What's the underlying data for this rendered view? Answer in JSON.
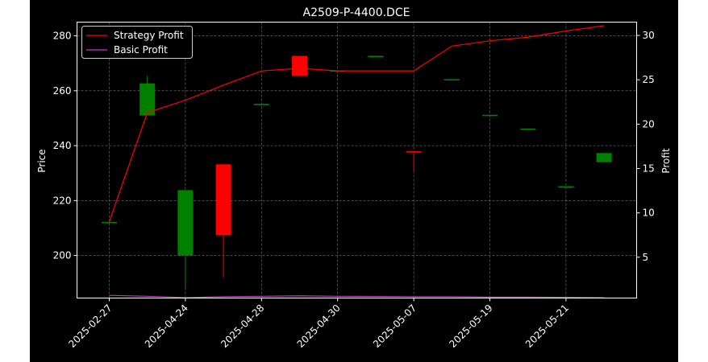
{
  "chart_data": {
    "type": "candlestick",
    "title": "A2509-P-4400.DCE",
    "xlabel": "",
    "ylabel_left": "Price",
    "ylabel_right": "Profit",
    "ylim_left": [
      184.5,
      285
    ],
    "ylim_right": [
      0.4,
      31.5
    ],
    "yticks_left": [
      200,
      220,
      240,
      260,
      280
    ],
    "yticks_right": [
      5,
      10,
      15,
      20,
      25,
      30
    ],
    "x_tick_labels": [
      "2025-02-27",
      "2025-04-24",
      "2025-04-28",
      "2025-04-30",
      "2025-05-07",
      "2025-05-19",
      "2025-05-21"
    ],
    "x_tick_indices": [
      0,
      2,
      4,
      6,
      8,
      10,
      12
    ],
    "grid": true,
    "legend_position": "upper-left",
    "colors": {
      "up": "#008000",
      "down": "#ff0000",
      "strategy": "#ff0000",
      "basic": "#cc33cc",
      "background": "#000000",
      "grid": "#7a7a7a"
    },
    "candles": [
      {
        "open": 212.0,
        "high": 212.0,
        "low": 212.0,
        "close": 212.0
      },
      {
        "open": 251.0,
        "high": 265.5,
        "low": 251.0,
        "close": 262.7
      },
      {
        "open": 200.0,
        "high": 223.8,
        "low": 188.0,
        "close": 223.8
      },
      {
        "open": 233.2,
        "high": 233.2,
        "low": 192.0,
        "close": 207.4
      },
      {
        "open": 255.0,
        "high": 255.0,
        "low": 255.0,
        "close": 255.0
      },
      {
        "open": 272.7,
        "high": 272.7,
        "low": 265.4,
        "close": 265.4
      },
      {
        "open": 267.2,
        "high": 267.2,
        "low": 267.2,
        "close": 267.2
      },
      {
        "open": 272.5,
        "high": 272.5,
        "low": 272.5,
        "close": 272.5
      },
      {
        "open": 238.0,
        "high": 238.0,
        "low": 230.5,
        "close": 237.5
      },
      {
        "open": 264.0,
        "high": 264.0,
        "low": 264.0,
        "close": 264.0
      },
      {
        "open": 251.0,
        "high": 251.0,
        "low": 251.0,
        "close": 251.0
      },
      {
        "open": 246.0,
        "high": 246.0,
        "low": 246.0,
        "close": 246.0
      },
      {
        "open": 225.0,
        "high": 225.0,
        "low": 225.0,
        "close": 225.0
      },
      {
        "open": 234.0,
        "high": 237.3,
        "low": 234.0,
        "close": 237.3
      }
    ],
    "series": [
      {
        "name": "Strategy Profit",
        "axis": "right",
        "values": [
          9.0,
          21.3,
          22.7,
          24.4,
          26.0,
          26.3,
          26.0,
          26.0,
          26.0,
          28.8,
          29.4,
          29.8,
          30.5,
          31.1
        ]
      },
      {
        "name": "Basic Profit",
        "axis": "right",
        "values": [
          0.7,
          0.6,
          0.45,
          0.55,
          0.6,
          0.65,
          0.6,
          0.58,
          0.55,
          0.55,
          0.5,
          0.5,
          0.48,
          0.45
        ]
      }
    ]
  }
}
